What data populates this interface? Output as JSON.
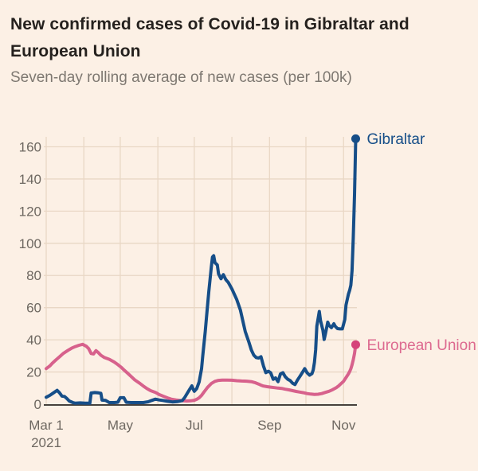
{
  "title_lines": [
    "New confirmed cases of Covid-19 in Gibraltar and",
    "European Union"
  ],
  "subtitle": "Seven-day rolling average of new cases (per 100k)",
  "colors": {
    "background": "#fcf0e5",
    "title": "#25211e",
    "subtitle": "#7e7871",
    "grid": "#e9d7c5",
    "zero_axis": "#46413c",
    "tick_label": "#6e6861"
  },
  "chart_data": {
    "type": "line",
    "title": "New confirmed cases of Covid-19 in Gibraltar and European Union",
    "subtitle": "Seven-day rolling average of new cases (per 100k)",
    "x_unit": "days since Mar 1 2021",
    "x_domain": [
      0,
      256
    ],
    "ylim": [
      0,
      160
    ],
    "grid": true,
    "y_ticks": [
      0,
      20,
      40,
      60,
      80,
      100,
      120,
      140,
      160
    ],
    "x_gridline_days": [
      0,
      31,
      61,
      92,
      122,
      153,
      184,
      214,
      245
    ],
    "x_ticks": [
      {
        "day": 0,
        "label": "Mar 1",
        "sublabel": "2021"
      },
      {
        "day": 61,
        "label": "May"
      },
      {
        "day": 122,
        "label": "Jul"
      },
      {
        "day": 184,
        "label": "Sep"
      },
      {
        "day": 245,
        "label": "Nov"
      }
    ],
    "legend_position": "end-of-line",
    "series": [
      {
        "name": "European Union",
        "label": "European Union",
        "color": "#d7618c",
        "dot_color": "#d5437a",
        "label_color": "#dd6a90",
        "end_value": 37,
        "points": [
          [
            0,
            22.1
          ],
          [
            3,
            23.8
          ],
          [
            5,
            25.4
          ],
          [
            8,
            27.5
          ],
          [
            11,
            29.5
          ],
          [
            14,
            31.5
          ],
          [
            18,
            33.5
          ],
          [
            21,
            34.8
          ],
          [
            24,
            35.8
          ],
          [
            27,
            36.6
          ],
          [
            30,
            37.2
          ],
          [
            33,
            36
          ],
          [
            35,
            34.5
          ],
          [
            37,
            31.5
          ],
          [
            39,
            31.2
          ],
          [
            41,
            33.3
          ],
          [
            43,
            32
          ],
          [
            45,
            30.4
          ],
          [
            48,
            29
          ],
          [
            52,
            27.9
          ],
          [
            56,
            26.2
          ],
          [
            59,
            24.6
          ],
          [
            62,
            22.8
          ],
          [
            64,
            21.3
          ],
          [
            67,
            19.3
          ],
          [
            70,
            17.2
          ],
          [
            73,
            15.1
          ],
          [
            77,
            13
          ],
          [
            80,
            11.3
          ],
          [
            83,
            9.7
          ],
          [
            86,
            8.4
          ],
          [
            90,
            7.3
          ],
          [
            93,
            6
          ],
          [
            97,
            4.8
          ],
          [
            100,
            3.9
          ],
          [
            103,
            3.1
          ],
          [
            107,
            2.6
          ],
          [
            110,
            2.3
          ],
          [
            113,
            2.1
          ],
          [
            116,
            2
          ],
          [
            119,
            2.1
          ],
          [
            122,
            2.4
          ],
          [
            124,
            3
          ],
          [
            126,
            4
          ],
          [
            128,
            5.5
          ],
          [
            130,
            7.5
          ],
          [
            133,
            10.5
          ],
          [
            136,
            12.8
          ],
          [
            139,
            14.2
          ],
          [
            142,
            14.8
          ],
          [
            145,
            15
          ],
          [
            149,
            15
          ],
          [
            153,
            14.9
          ],
          [
            157,
            14.6
          ],
          [
            161,
            14.4
          ],
          [
            165,
            14.3
          ],
          [
            169,
            14
          ],
          [
            172,
            13.4
          ],
          [
            175,
            12.5
          ],
          [
            177,
            11.8
          ],
          [
            179,
            11.3
          ],
          [
            182,
            10.9
          ],
          [
            185,
            10.6
          ],
          [
            188,
            10.3
          ],
          [
            191,
            10
          ],
          [
            194,
            9.8
          ],
          [
            197,
            9.3
          ],
          [
            200,
            8.9
          ],
          [
            203,
            8.4
          ],
          [
            206,
            7.9
          ],
          [
            209,
            7.5
          ],
          [
            212,
            7.1
          ],
          [
            215,
            6.6
          ],
          [
            218,
            6.3
          ],
          [
            221,
            6.1
          ],
          [
            224,
            6.2
          ],
          [
            227,
            6.6
          ],
          [
            230,
            7.3
          ],
          [
            233,
            8
          ],
          [
            236,
            9
          ],
          [
            239,
            10.3
          ],
          [
            241,
            11.4
          ],
          [
            243,
            12.8
          ],
          [
            245,
            14.2
          ],
          [
            247,
            16.5
          ],
          [
            249,
            18.8
          ],
          [
            250,
            20.3
          ],
          [
            251,
            22
          ],
          [
            252,
            24.5
          ],
          [
            253,
            27.5
          ],
          [
            254,
            31.5
          ],
          [
            255,
            37
          ]
        ]
      },
      {
        "name": "Gibraltar",
        "label": "Gibraltar",
        "color": "#164e88",
        "dot_color": "#164e88",
        "label_color": "#164e88",
        "end_value": 165,
        "points": [
          [
            0,
            4.3
          ],
          [
            3,
            5.5
          ],
          [
            6,
            7
          ],
          [
            9,
            8.6
          ],
          [
            11,
            7
          ],
          [
            13,
            5
          ],
          [
            15,
            4.8
          ],
          [
            17,
            3.5
          ],
          [
            19,
            2
          ],
          [
            22,
            1
          ],
          [
            24,
            0.6
          ],
          [
            28,
            0.8
          ],
          [
            32,
            0.6
          ],
          [
            36,
            0.6
          ],
          [
            37,
            6.9
          ],
          [
            40,
            7.2
          ],
          [
            43,
            7
          ],
          [
            45,
            6.8
          ],
          [
            46,
            2.5
          ],
          [
            49,
            2.3
          ],
          [
            52,
            1
          ],
          [
            56,
            1
          ],
          [
            59,
            1.2
          ],
          [
            61,
            4
          ],
          [
            64,
            4
          ],
          [
            66,
            1.2
          ],
          [
            70,
            1
          ],
          [
            75,
            1
          ],
          [
            80,
            1
          ],
          [
            84,
            1.5
          ],
          [
            87,
            2.3
          ],
          [
            90,
            3.1
          ],
          [
            93,
            2.6
          ],
          [
            96,
            2.3
          ],
          [
            100,
            1.8
          ],
          [
            104,
            1.4
          ],
          [
            108,
            1.6
          ],
          [
            112,
            2.2
          ],
          [
            114,
            4
          ],
          [
            116,
            6.5
          ],
          [
            118,
            9
          ],
          [
            120,
            11.4
          ],
          [
            121,
            9.5
          ],
          [
            122,
            8
          ],
          [
            124,
            9.7
          ],
          [
            126,
            13.9
          ],
          [
            128,
            22
          ],
          [
            129,
            30
          ],
          [
            131,
            45
          ],
          [
            132,
            53.5
          ],
          [
            134,
            70
          ],
          [
            136,
            85
          ],
          [
            137,
            91.4
          ],
          [
            138,
            92.3
          ],
          [
            139,
            88
          ],
          [
            141,
            86.5
          ],
          [
            142,
            81
          ],
          [
            144,
            78
          ],
          [
            146,
            80.5
          ],
          [
            148,
            77.4
          ],
          [
            150,
            75.7
          ],
          [
            153,
            71.6
          ],
          [
            157,
            65
          ],
          [
            160,
            58.4
          ],
          [
            162,
            51.8
          ],
          [
            164,
            45.2
          ],
          [
            167,
            38.6
          ],
          [
            169,
            33.7
          ],
          [
            171,
            30.5
          ],
          [
            173,
            29
          ],
          [
            175,
            28.7
          ],
          [
            177,
            29.5
          ],
          [
            179,
            23.8
          ],
          [
            181,
            19.6
          ],
          [
            183,
            20.5
          ],
          [
            185,
            19.5
          ],
          [
            187,
            15.5
          ],
          [
            189,
            16.3
          ],
          [
            191,
            14
          ],
          [
            193,
            18.8
          ],
          [
            195,
            19.6
          ],
          [
            197,
            17
          ],
          [
            199,
            15.5
          ],
          [
            201,
            14.7
          ],
          [
            203,
            13
          ],
          [
            205,
            12.2
          ],
          [
            207,
            15
          ],
          [
            209,
            17.2
          ],
          [
            211,
            19.6
          ],
          [
            213,
            22.1
          ],
          [
            215,
            19.5
          ],
          [
            217,
            18
          ],
          [
            219,
            19
          ],
          [
            220,
            21.3
          ],
          [
            221,
            26
          ],
          [
            222,
            33.7
          ],
          [
            223,
            48.5
          ],
          [
            225,
            57.6
          ],
          [
            226,
            52
          ],
          [
            228,
            46
          ],
          [
            229,
            40.2
          ],
          [
            230,
            43.5
          ],
          [
            232,
            51
          ],
          [
            233,
            49
          ],
          [
            235,
            47.6
          ],
          [
            237,
            50
          ],
          [
            238,
            48.5
          ],
          [
            240,
            47
          ],
          [
            242,
            46.8
          ],
          [
            244,
            46.8
          ],
          [
            246,
            52.6
          ],
          [
            247,
            61.6
          ],
          [
            249,
            68.3
          ],
          [
            250,
            70.8
          ],
          [
            251,
            74
          ],
          [
            252,
            83
          ],
          [
            253,
            103
          ],
          [
            254,
            130
          ],
          [
            255,
            165
          ]
        ]
      }
    ]
  }
}
